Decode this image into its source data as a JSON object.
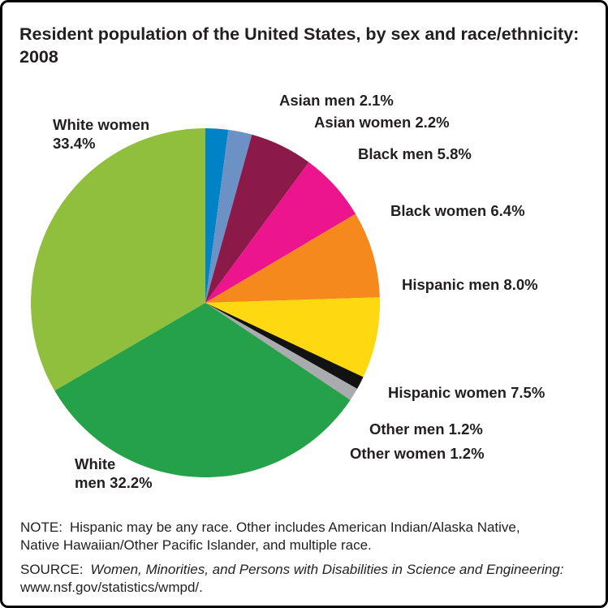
{
  "title": "Resident population of the United States, by sex and race/ethnicity: 2008",
  "header": {
    "lines": [
      "Resident population of the United States, by sex and race/ethnicity:",
      "2008"
    ]
  },
  "chart_data": {
    "type": "pie",
    "title": "Resident population of the United States, by sex and race/ethnicity: 2008",
    "values_unit": "%",
    "start_angle_deg": -90,
    "direction": "clockwise",
    "legend_position": "labels-around-pie",
    "slices": [
      {
        "name": "Asian men",
        "value": 2.1,
        "color": "#0082c6",
        "label": "Asian men 2.1%"
      },
      {
        "name": "Asian women",
        "value": 2.2,
        "color": "#6c92c5",
        "label": "Asian women 2.2%"
      },
      {
        "name": "Black men",
        "value": 5.8,
        "color": "#8c1a49",
        "label": "Black men 5.8%"
      },
      {
        "name": "Black women",
        "value": 6.4,
        "color": "#ec158e",
        "label": "Black women 6.4%"
      },
      {
        "name": "Hispanic men",
        "value": 8.0,
        "color": "#f6891e",
        "label": "Hispanic men 8.0%"
      },
      {
        "name": "Hispanic women",
        "value": 7.5,
        "color": "#fed810",
        "label": "Hispanic women 7.5%"
      },
      {
        "name": "Other men",
        "value": 1.2,
        "color": "#121212",
        "label": "Other men 1.2%"
      },
      {
        "name": "Other women",
        "value": 1.2,
        "color": "#a9abae",
        "label": "Other women 1.2%"
      },
      {
        "name": "White men",
        "value": 32.2,
        "color": "#25a149",
        "label": "White men 32.2%",
        "lines": [
          "White",
          "men 32.2%"
        ]
      },
      {
        "name": "White women",
        "value": 33.4,
        "color": "#8fbf3d",
        "label": "White women 33.4%",
        "lines": [
          "White women",
          "33.4%"
        ]
      }
    ]
  },
  "note": {
    "label": "NOTE:",
    "lines": [
      "Hispanic may be any race. Other includes American Indian/Alaska Native,",
      "Native Hawaiian/Other Pacific Islander, and multiple race."
    ]
  },
  "source": {
    "label": "SOURCE:",
    "work": "Women, Minorities, and Persons with Disabilities in Science and Engineering:",
    "url": "www.nsf.gov/statistics/wmpd/."
  }
}
